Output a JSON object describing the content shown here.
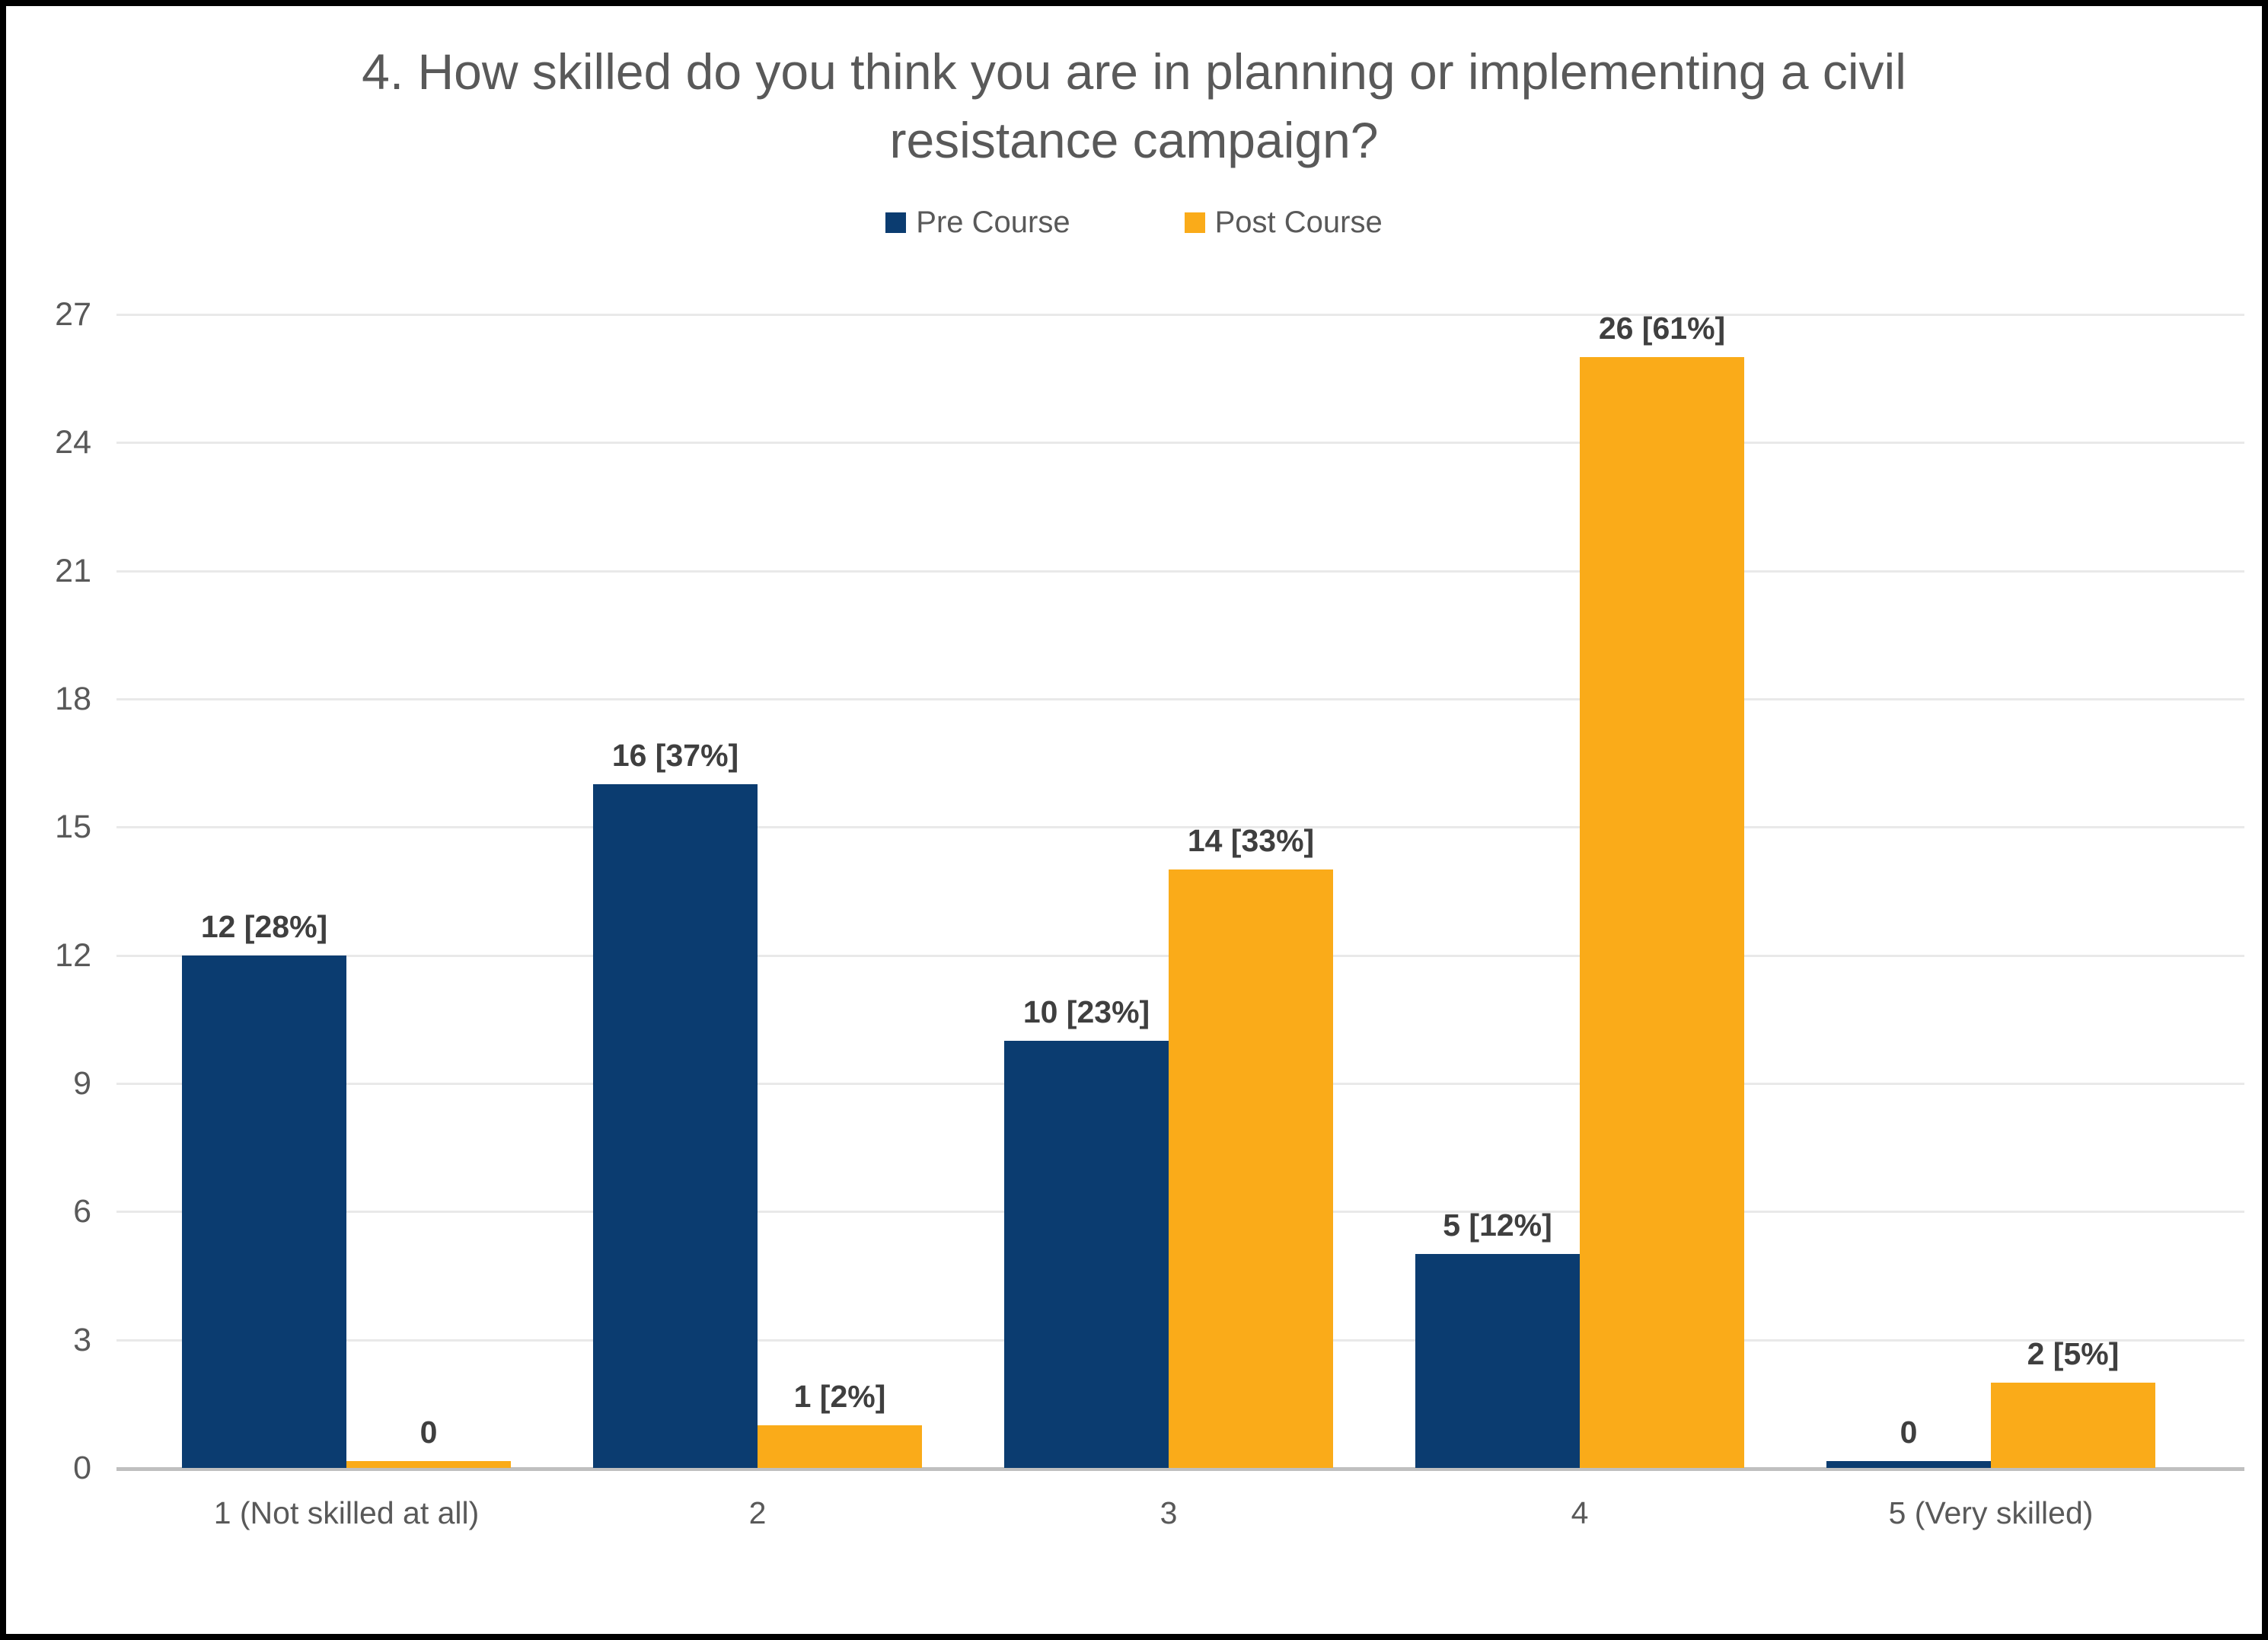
{
  "title_lines": [
    "4. How skilled do you think you are in planning or implementing a civil",
    "resistance campaign?"
  ],
  "legend": {
    "items": [
      {
        "label": "Pre Course",
        "color": "#0b3c70"
      },
      {
        "label": "Post Course",
        "color": "#faab19"
      }
    ]
  },
  "chart_data": {
    "type": "bar",
    "title": "4. How skilled do you think you are in planning or implementing a civil resistance campaign?",
    "categories": [
      "1 (Not skilled at all)",
      "2",
      "3",
      "4",
      "5 (Very skilled)"
    ],
    "series": [
      {
        "name": "Pre Course",
        "color": "#0b3c70",
        "values": [
          12,
          16,
          10,
          5,
          0
        ],
        "data_labels": [
          "12 [28%]",
          "16 [37%]",
          "10 [23%]",
          "5 [12%]",
          "0"
        ]
      },
      {
        "name": "Post Course",
        "color": "#faab19",
        "values": [
          0,
          1,
          14,
          26,
          2
        ],
        "data_labels": [
          "0",
          "1 [2%]",
          "14 [33%]",
          "26 [61%]",
          "2 [5%]"
        ]
      }
    ],
    "xlabel": "",
    "ylabel": "",
    "ylim": [
      0,
      27
    ],
    "y_ticks": [
      0,
      3,
      6,
      9,
      12,
      15,
      18,
      21,
      24,
      27
    ],
    "grid": true,
    "legend_position": "top-center",
    "colors": {
      "grid": "#e9e9e9",
      "axis_line": "#bfbfbf",
      "tick_label": "#595959",
      "data_label": "#3f3f3f",
      "title": "#595959"
    }
  }
}
